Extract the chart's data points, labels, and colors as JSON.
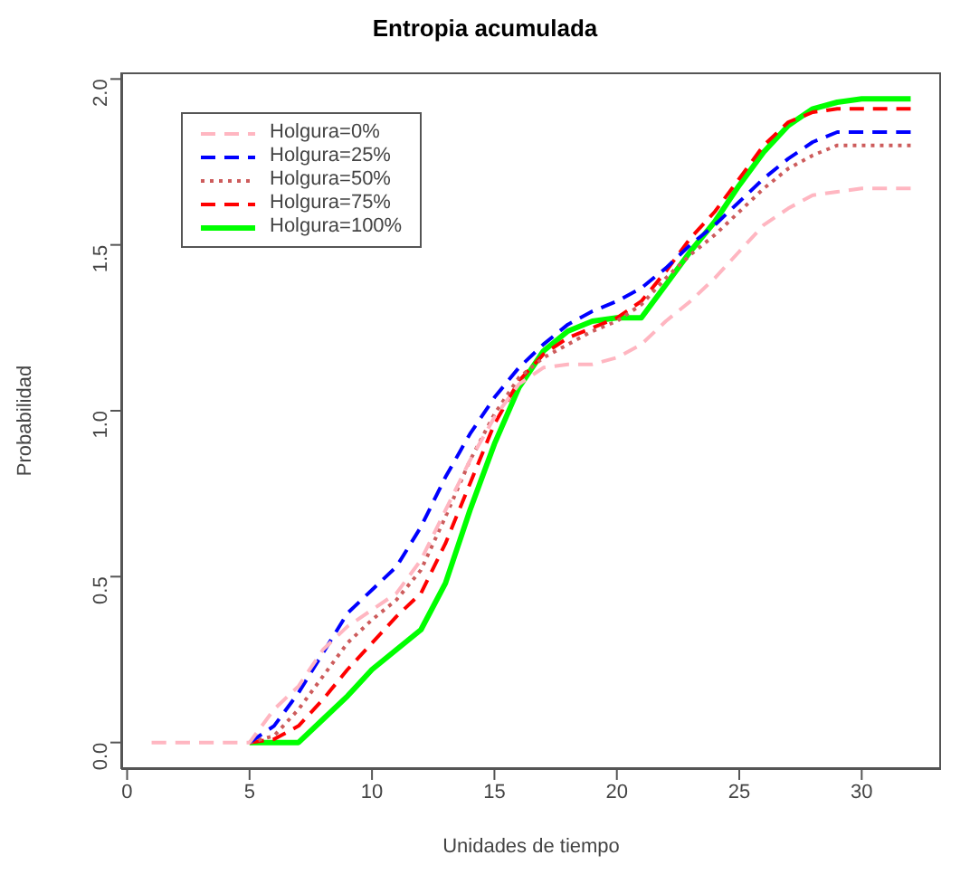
{
  "chart_data": {
    "type": "line",
    "title": "Entropia acumulada",
    "xlabel": "Unidades de tiempo",
    "ylabel": "Probabilidad",
    "x": [
      1,
      2,
      3,
      4,
      5,
      6,
      7,
      8,
      9,
      10,
      11,
      12,
      13,
      14,
      15,
      16,
      17,
      18,
      19,
      20,
      21,
      22,
      23,
      24,
      25,
      26,
      27,
      28,
      29,
      30,
      31,
      32
    ],
    "xlim": [
      -0.24,
      33.24
    ],
    "xticks": [
      0,
      5,
      10,
      15,
      20,
      25,
      30
    ],
    "ylim": [
      -0.08,
      2.02
    ],
    "yticks": [
      {
        "value": 0,
        "label": "0.0"
      },
      {
        "value": 0.5,
        "label": "0.5"
      },
      {
        "value": 1,
        "label": "1.0"
      },
      {
        "value": 1.5,
        "label": "1.5"
      },
      {
        "value": 2,
        "label": "2.0"
      }
    ],
    "grid": false,
    "legend": "top left",
    "marker": "none",
    "series": [
      {
        "name": "Holgura=0%",
        "color": "#ffb6c1",
        "line_style": "dashed",
        "values": [
          0,
          0,
          0,
          0,
          0,
          0.1,
          0.17,
          0.28,
          0.35,
          0.4,
          0.45,
          0.55,
          0.7,
          0.85,
          0.98,
          1.08,
          1.13,
          1.14,
          1.14,
          1.16,
          1.2,
          1.27,
          1.33,
          1.4,
          1.48,
          1.56,
          1.61,
          1.65,
          1.66,
          1.67,
          1.67,
          1.67
        ]
      },
      {
        "name": "Holgura=25%",
        "color": "#0000ff",
        "line_style": "dashed",
        "values": [
          null,
          null,
          null,
          null,
          0,
          0.05,
          0.15,
          0.27,
          0.39,
          0.46,
          0.53,
          0.65,
          0.8,
          0.93,
          1.04,
          1.13,
          1.2,
          1.26,
          1.3,
          1.33,
          1.37,
          1.43,
          1.5,
          1.56,
          1.63,
          1.7,
          1.76,
          1.81,
          1.84,
          1.84,
          1.84,
          1.84
        ]
      },
      {
        "name": "Holgura=50%",
        "color": "#cd5c5c",
        "line_style": "dotted",
        "values": [
          null,
          null,
          null,
          null,
          0,
          0.02,
          0.1,
          0.2,
          0.3,
          0.37,
          0.43,
          0.52,
          0.68,
          0.85,
          0.99,
          1.1,
          1.16,
          1.2,
          1.24,
          1.27,
          1.32,
          1.4,
          1.47,
          1.53,
          1.6,
          1.67,
          1.73,
          1.77,
          1.8,
          1.8,
          1.8,
          1.8
        ]
      },
      {
        "name": "Holgura=75%",
        "color": "#ff0000",
        "line_style": "dashed",
        "values": [
          null,
          null,
          null,
          null,
          0,
          0.01,
          0.05,
          0.13,
          0.22,
          0.3,
          0.38,
          0.45,
          0.6,
          0.78,
          0.96,
          1.09,
          1.17,
          1.22,
          1.25,
          1.28,
          1.33,
          1.42,
          1.52,
          1.6,
          1.7,
          1.8,
          1.87,
          1.9,
          1.91,
          1.91,
          1.91,
          1.91
        ]
      },
      {
        "name": "Holgura=100%",
        "color": "#00ff00",
        "line_style": "solid",
        "values": [
          null,
          null,
          null,
          null,
          0,
          0,
          0,
          0.07,
          0.14,
          0.22,
          0.28,
          0.34,
          0.48,
          0.7,
          0.9,
          1.07,
          1.18,
          1.24,
          1.27,
          1.28,
          1.28,
          1.38,
          1.48,
          1.57,
          1.68,
          1.78,
          1.86,
          1.91,
          1.93,
          1.94,
          1.94,
          1.94
        ]
      }
    ]
  }
}
